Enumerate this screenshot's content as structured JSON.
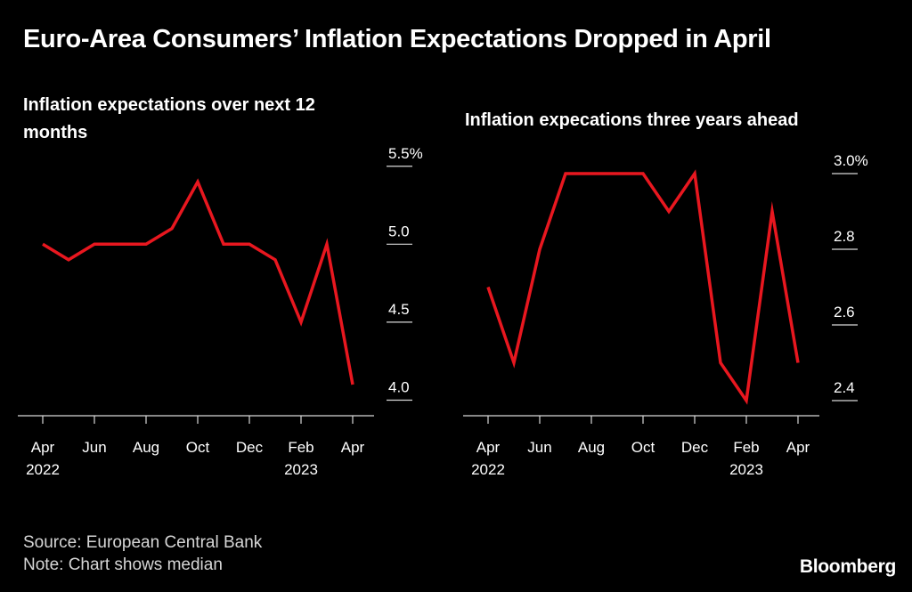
{
  "title": "Euro-Area Consumers’ Inflation Expectations Dropped in April",
  "colors": {
    "background": "#000000",
    "line": "#e8171f",
    "text": "#ffffff",
    "axis": "#d8d8d8"
  },
  "chart_data": [
    {
      "type": "line",
      "title": "Inflation expectations over next 12 months",
      "xlabel": "",
      "ylabel": "",
      "x": [
        "Apr 2022",
        "May 2022",
        "Jun 2022",
        "Jul 2022",
        "Aug 2022",
        "Sep 2022",
        "Oct 2022",
        "Nov 2022",
        "Dec 2022",
        "Jan 2023",
        "Feb 2023",
        "Mar 2023",
        "Apr 2023"
      ],
      "series": [
        {
          "name": "Median",
          "values": [
            5.0,
            4.9,
            5.0,
            5.0,
            5.0,
            5.1,
            5.4,
            5.0,
            5.0,
            4.9,
            4.5,
            5.0,
            4.1
          ]
        }
      ],
      "ylim": [
        3.9,
        5.55
      ],
      "y_ticks": [
        {
          "value": 5.5,
          "label": "5.5%"
        },
        {
          "value": 5.0,
          "label": "5.0"
        },
        {
          "value": 4.5,
          "label": "4.5"
        },
        {
          "value": 4.0,
          "label": "4.0"
        }
      ],
      "x_ticks": [
        {
          "index": 0,
          "label": "Apr",
          "label2": "2022"
        },
        {
          "index": 2,
          "label": "Jun",
          "label2": ""
        },
        {
          "index": 4,
          "label": "Aug",
          "label2": ""
        },
        {
          "index": 6,
          "label": "Oct",
          "label2": ""
        },
        {
          "index": 8,
          "label": "Dec",
          "label2": ""
        },
        {
          "index": 10,
          "label": "Feb",
          "label2": "2023"
        },
        {
          "index": 12,
          "label": "Apr",
          "label2": ""
        }
      ]
    },
    {
      "type": "line",
      "title": "Inflation expecations three years ahead",
      "xlabel": "",
      "ylabel": "",
      "x": [
        "Apr 2022",
        "May 2022",
        "Jun 2022",
        "Jul 2022",
        "Aug 2022",
        "Sep 2022",
        "Oct 2022",
        "Nov 2022",
        "Dec 2022",
        "Jan 2023",
        "Feb 2023",
        "Mar 2023",
        "Apr 2023"
      ],
      "series": [
        {
          "name": "Median",
          "values": [
            2.7,
            2.5,
            2.8,
            3.0,
            3.0,
            3.0,
            3.0,
            2.9,
            3.0,
            2.5,
            2.4,
            2.9,
            2.5
          ]
        }
      ],
      "ylim": [
        2.36,
        3.04
      ],
      "y_ticks": [
        {
          "value": 3.0,
          "label": "3.0%"
        },
        {
          "value": 2.8,
          "label": "2.8"
        },
        {
          "value": 2.6,
          "label": "2.6"
        },
        {
          "value": 2.4,
          "label": "2.4"
        }
      ],
      "x_ticks": [
        {
          "index": 0,
          "label": "Apr",
          "label2": "2022"
        },
        {
          "index": 2,
          "label": "Jun",
          "label2": ""
        },
        {
          "index": 4,
          "label": "Aug",
          "label2": ""
        },
        {
          "index": 6,
          "label": "Oct",
          "label2": ""
        },
        {
          "index": 8,
          "label": "Dec",
          "label2": ""
        },
        {
          "index": 10,
          "label": "Feb",
          "label2": "2023"
        },
        {
          "index": 12,
          "label": "Apr",
          "label2": ""
        }
      ]
    }
  ],
  "footer": {
    "source": "Source: European Central Bank",
    "note": "Note: Chart shows median"
  },
  "brand": "Bloomberg"
}
